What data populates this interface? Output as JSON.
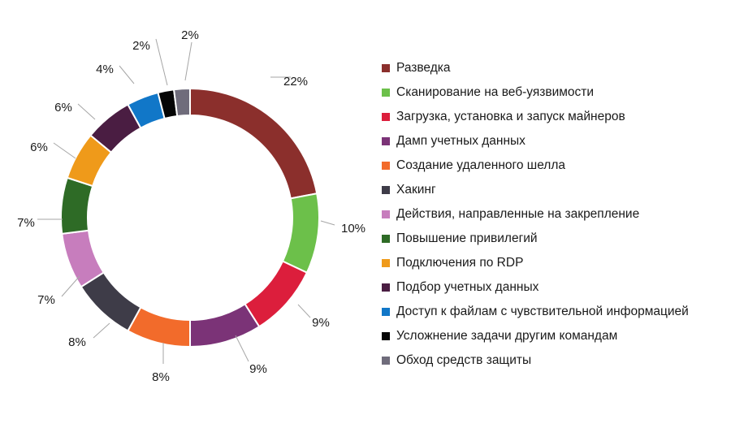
{
  "chart_data": {
    "type": "pie",
    "donut": true,
    "legend_position": "right",
    "slices": [
      {
        "label": "Разведка",
        "value": 22,
        "value_label": "22%",
        "color": "#8b2f2c"
      },
      {
        "label": "Сканирование на веб-уязвимости",
        "value": 10,
        "value_label": "10%",
        "color": "#6cc04a"
      },
      {
        "label": "Загрузка, установка и запуск майнеров",
        "value": 9,
        "value_label": "9%",
        "color": "#dc1e3c"
      },
      {
        "label": "Дамп учетных данных",
        "value": 9,
        "value_label": "9%",
        "color": "#7b3377"
      },
      {
        "label": "Создание удаленного шелла",
        "value": 8,
        "value_label": "8%",
        "color": "#f26b2b"
      },
      {
        "label": "Хакинг",
        "value": 8,
        "value_label": "8%",
        "color": "#3e3c48"
      },
      {
        "label": "Действия, направленные на закрепление",
        "value": 7,
        "value_label": "7%",
        "color": "#c77dbd"
      },
      {
        "label": "Повышение привилегий",
        "value": 7,
        "value_label": "7%",
        "color": "#2e6b26"
      },
      {
        "label": "Подключения по RDP",
        "value": 6,
        "value_label": "6%",
        "color": "#ef9a1a"
      },
      {
        "label": "Подбор учетных данных",
        "value": 6,
        "value_label": "6%",
        "color": "#4a1d42"
      },
      {
        "label": "Доступ к файлам с чувствительной информацией",
        "value": 4,
        "value_label": "4%",
        "color": "#1177c8"
      },
      {
        "label": "Усложнение задачи другим командам",
        "value": 2,
        "value_label": "2%",
        "color": "#050505"
      },
      {
        "label": "Обход средств защиты",
        "value": 2,
        "value_label": "2%",
        "color": "#6f6c7b"
      }
    ]
  }
}
